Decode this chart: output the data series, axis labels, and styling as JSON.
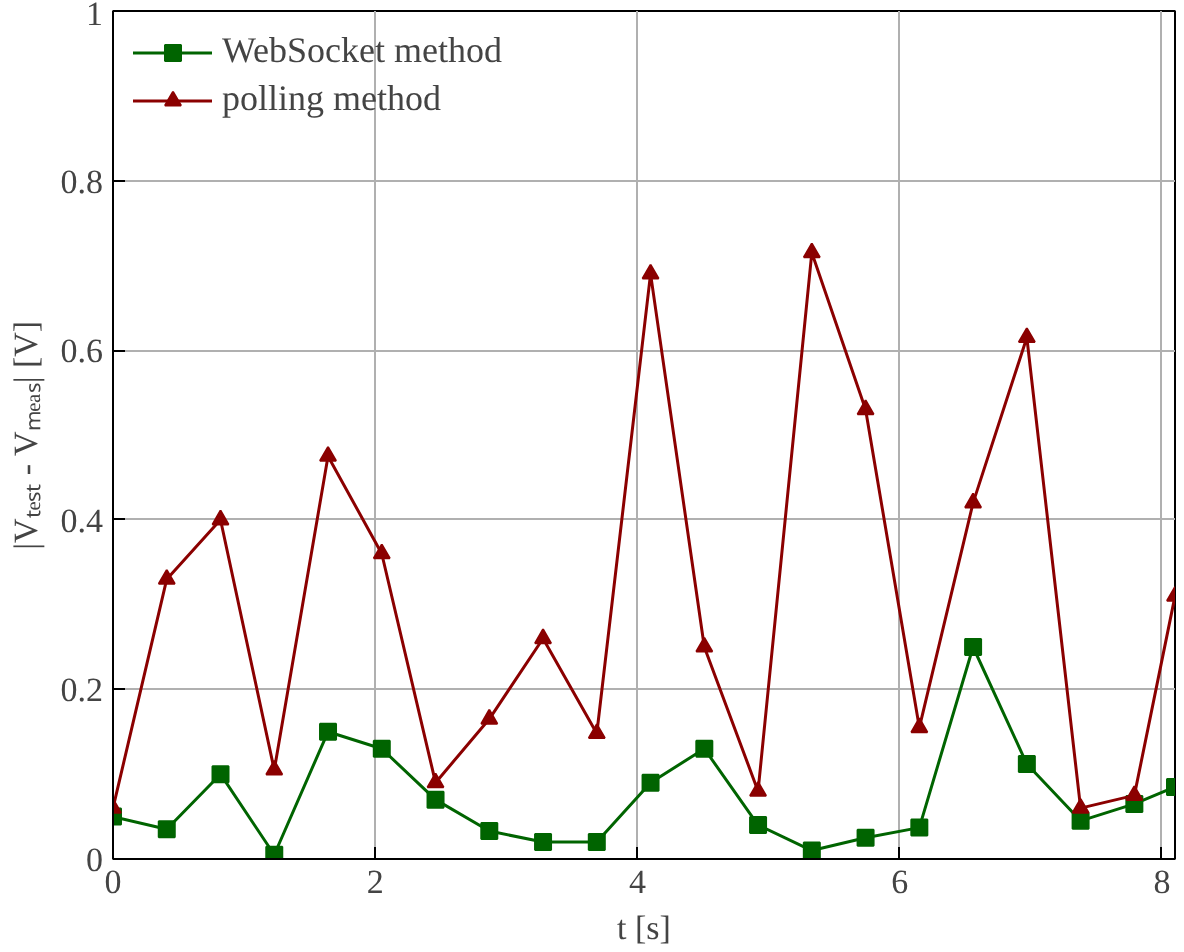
{
  "chart_data": {
    "type": "line",
    "xlabel": "t [s]",
    "ylabel": "|Vₜₑₛₜ - Vₘₑₐₛ| [V]",
    "xlim": [
      0,
      8.1
    ],
    "ylim": [
      0,
      1
    ],
    "xticks": [
      0,
      2,
      4,
      6,
      8
    ],
    "yticks": [
      0,
      0.2,
      0.4,
      0.6,
      0.8,
      1
    ],
    "grid": true,
    "legend": "top left",
    "line_style": "solid",
    "series": [
      {
        "name": "WebSocket method",
        "color": "#006400",
        "marker": "square",
        "x": [
          0,
          0.41,
          0.82,
          1.23,
          1.64,
          2.05,
          2.46,
          2.87,
          3.28,
          3.69,
          4.1,
          4.51,
          4.92,
          5.33,
          5.74,
          6.15,
          6.56,
          6.97,
          7.38,
          7.79,
          8.1
        ],
        "values": [
          0.05,
          0.035,
          0.1,
          0.005,
          0.15,
          0.13,
          0.07,
          0.033,
          0.02,
          0.02,
          0.09,
          0.13,
          0.04,
          0.01,
          0.025,
          0.037,
          0.25,
          0.112,
          0.045,
          0.065,
          0.085
        ]
      },
      {
        "name": "polling method",
        "color": "#8b0000",
        "marker": "triangle",
        "x": [
          0,
          0.41,
          0.82,
          1.23,
          1.64,
          2.05,
          2.46,
          2.87,
          3.28,
          3.69,
          4.1,
          4.51,
          4.92,
          5.33,
          5.74,
          6.15,
          6.56,
          6.97,
          7.38,
          7.79,
          8.1
        ],
        "values": [
          0.06,
          0.33,
          0.4,
          0.105,
          0.475,
          0.36,
          0.09,
          0.165,
          0.26,
          0.148,
          0.69,
          0.25,
          0.08,
          0.715,
          0.53,
          0.155,
          0.42,
          0.615,
          0.06,
          0.075,
          0.31
        ]
      }
    ]
  }
}
